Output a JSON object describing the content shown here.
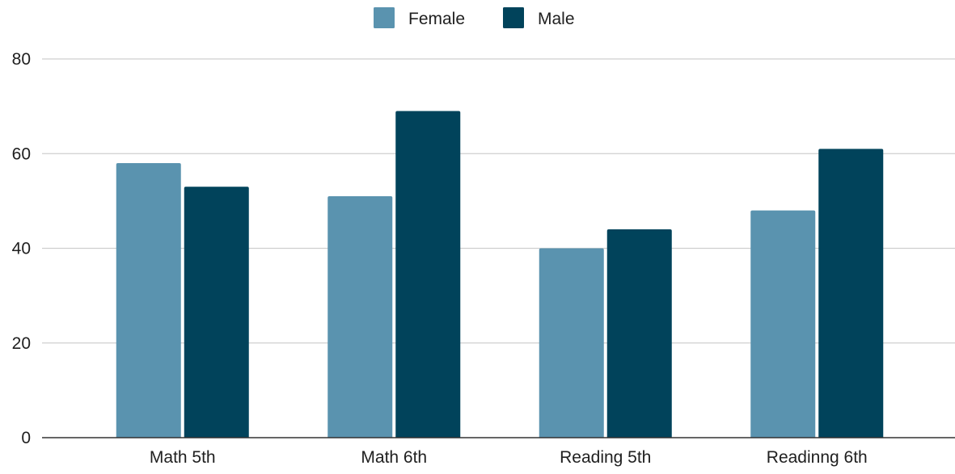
{
  "chart_data": {
    "type": "bar",
    "title": "",
    "xlabel": "",
    "ylabel": "",
    "categories": [
      "Math 5th",
      "Math 6th",
      "Reading 5th",
      "Readinng 6th"
    ],
    "series": [
      {
        "name": "Female",
        "color": "#5a93af",
        "values": [
          58,
          51,
          40,
          48
        ]
      },
      {
        "name": "Male",
        "color": "#01435b",
        "values": [
          53,
          69,
          44,
          61
        ]
      }
    ],
    "ylim": [
      0,
      80
    ],
    "yticks": [
      0,
      20,
      40,
      60,
      80
    ],
    "grid": true,
    "legend": "top-center"
  }
}
